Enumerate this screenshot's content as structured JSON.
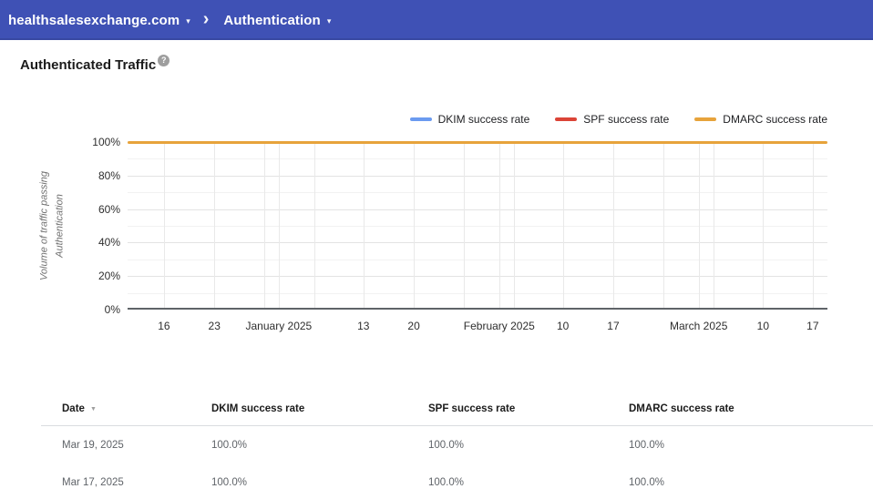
{
  "top_bar": {
    "background": "#3f51b5",
    "domain_selector": {
      "label": "healthsalesexchange.com",
      "caret": "▾"
    },
    "breadcrumb_chevron": "›",
    "section_selector": {
      "label": "Authentication",
      "caret": "▾"
    }
  },
  "page": {
    "title": "Authenticated Traffic",
    "help_icon": "?"
  },
  "chart_data": {
    "type": "line",
    "title": "Authenticated Traffic",
    "xlabel": "",
    "ylabel": "Volume of traffic passing\nAuthentication",
    "ylim": [
      0,
      100
    ],
    "y_tick_labels": [
      "100%",
      "80%",
      "60%",
      "40%",
      "20%",
      "0%"
    ],
    "grid": true,
    "legend_position": "top-right",
    "x_ticks": [
      {
        "label": "16",
        "pos": 0.052
      },
      {
        "label": "23",
        "pos": 0.124
      },
      {
        "label": "January 2025",
        "pos": 0.216
      },
      {
        "label": "13",
        "pos": 0.337
      },
      {
        "label": "20",
        "pos": 0.409
      },
      {
        "label": "February 2025",
        "pos": 0.531
      },
      {
        "label": "10",
        "pos": 0.622
      },
      {
        "label": "17",
        "pos": 0.694
      },
      {
        "label": "March 2025",
        "pos": 0.816
      },
      {
        "label": "10",
        "pos": 0.908
      },
      {
        "label": "17",
        "pos": 0.979
      }
    ],
    "x_gridlines": [
      0.052,
      0.124,
      0.195,
      0.216,
      0.267,
      0.337,
      0.409,
      0.481,
      0.531,
      0.552,
      0.622,
      0.694,
      0.766,
      0.816,
      0.837,
      0.908,
      0.979
    ],
    "series": [
      {
        "name": "DKIM success rate",
        "color": "#6b9bf0",
        "constant_value_percent": 100
      },
      {
        "name": "SPF success rate",
        "color": "#db4437",
        "constant_value_percent": 100
      },
      {
        "name": "DMARC success rate",
        "color": "#e7a33b",
        "constant_value_percent": 100
      }
    ],
    "note": "All three series are flat at 100% across the full date range (mid-Dec 2024 to Mar 19, 2025); they overlap so only the top (DMARC, orange) line is visible."
  },
  "table": {
    "columns": [
      {
        "label": "Date",
        "sort_icon": "▼"
      },
      {
        "label": "DKIM success rate"
      },
      {
        "label": "SPF success rate"
      },
      {
        "label": "DMARC success rate"
      }
    ],
    "rows": [
      [
        "Mar 19, 2025",
        "100.0%",
        "100.0%",
        "100.0%"
      ],
      [
        "Mar 17, 2025",
        "100.0%",
        "100.0%",
        "100.0%"
      ]
    ]
  }
}
